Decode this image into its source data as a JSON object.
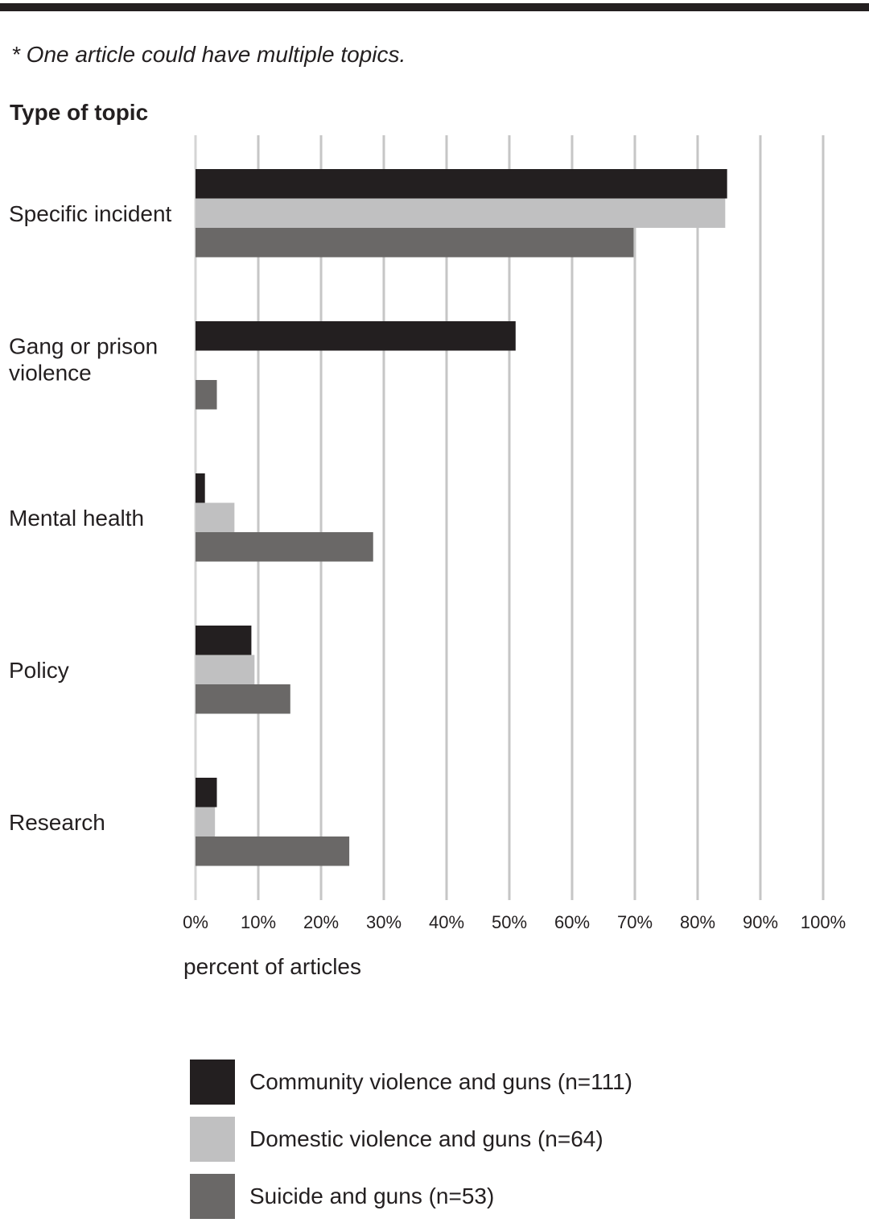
{
  "footnote": "* One article could have multiple topics.",
  "chart_data": {
    "type": "bar",
    "orientation": "horizontal",
    "title": "",
    "ylabel": "Type of topic",
    "xlabel": "percent of articles",
    "xlim": [
      0,
      100
    ],
    "xticks": [
      "0%",
      "10%",
      "20%",
      "30%",
      "40%",
      "50%",
      "60%",
      "70%",
      "80%",
      "90%",
      "100%"
    ],
    "grid": "vertical",
    "legend_position": "bottom",
    "categories": [
      [
        "Specific incident"
      ],
      [
        "Gang or prison",
        "violence"
      ],
      [
        "Mental health"
      ],
      [
        "Policy"
      ],
      [
        "Research"
      ]
    ],
    "series": [
      {
        "name": "Community violence and guns (n=111)",
        "color": "#231f20",
        "values": [
          84.7,
          51,
          1.5,
          8.9,
          3.4
        ]
      },
      {
        "name": "Domestic violence and guns (n=64)",
        "color": "#c0c0c1",
        "values": [
          84.4,
          0,
          6.2,
          9.4,
          3.1
        ]
      },
      {
        "name": "Suicide and guns (n=53)",
        "color": "#6a6867",
        "values": [
          69.8,
          3.4,
          28.3,
          15.1,
          24.5
        ]
      }
    ]
  }
}
